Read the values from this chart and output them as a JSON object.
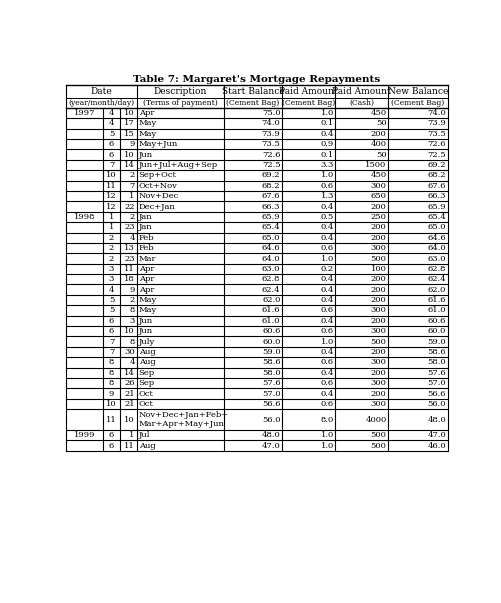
{
  "title": "Table 7: Margaret's Mortgage Repayments",
  "headers_line1": [
    "Date",
    "",
    "",
    "Description",
    "Start Balance",
    "Paid Amount",
    "Paid Amount",
    "New Balance"
  ],
  "headers_line2": [
    "(year/month/day)",
    "",
    "",
    "(Terms of payment)",
    "(Cement Bag)",
    "(Cement Bag)",
    "(Cash)",
    "(Cement Bag)"
  ],
  "rows": [
    [
      1997,
      4,
      10,
      "Apr",
      75.0,
      1.0,
      450,
      74.0
    ],
    [
      1997,
      4,
      17,
      "May",
      74.0,
      0.1,
      50,
      73.9
    ],
    [
      1997,
      5,
      15,
      "May",
      73.9,
      0.4,
      200,
      73.5
    ],
    [
      1997,
      6,
      9,
      "May+Jun",
      73.5,
      0.9,
      400,
      72.6
    ],
    [
      1997,
      6,
      10,
      "Jun",
      72.6,
      0.1,
      50,
      72.5
    ],
    [
      1997,
      7,
      14,
      "Jun+Jul+Aug+Sep",
      72.5,
      3.3,
      1500,
      69.2
    ],
    [
      1997,
      10,
      2,
      "Sep+Oct",
      69.2,
      1.0,
      450,
      68.2
    ],
    [
      1997,
      11,
      7,
      "Oct+Nov",
      68.2,
      0.6,
      300,
      67.6
    ],
    [
      1997,
      12,
      1,
      "Nov+Dec",
      67.6,
      1.3,
      650,
      66.3
    ],
    [
      1997,
      12,
      22,
      "Dec+Jan",
      66.3,
      0.4,
      200,
      65.9
    ],
    [
      1998,
      1,
      2,
      "Jan",
      65.9,
      0.5,
      250,
      65.4
    ],
    [
      1998,
      1,
      23,
      "Jan",
      65.4,
      0.4,
      200,
      65.0
    ],
    [
      1998,
      2,
      4,
      "Feb",
      65.0,
      0.4,
      200,
      64.6
    ],
    [
      1998,
      2,
      13,
      "Feb",
      64.6,
      0.6,
      300,
      64.0
    ],
    [
      1998,
      2,
      23,
      "Mar",
      64.0,
      1.0,
      500,
      63.0
    ],
    [
      1998,
      3,
      11,
      "Apr",
      63.0,
      0.2,
      100,
      62.8
    ],
    [
      1998,
      3,
      18,
      "Apr",
      62.8,
      0.4,
      200,
      62.4
    ],
    [
      1998,
      4,
      9,
      "Apr",
      62.4,
      0.4,
      200,
      62.0
    ],
    [
      1998,
      5,
      2,
      "May",
      62.0,
      0.4,
      200,
      61.6
    ],
    [
      1998,
      5,
      8,
      "May",
      61.6,
      0.6,
      300,
      61.0
    ],
    [
      1998,
      6,
      3,
      "Jun",
      61.0,
      0.4,
      200,
      60.6
    ],
    [
      1998,
      6,
      10,
      "Jun",
      60.6,
      0.6,
      300,
      60.0
    ],
    [
      1998,
      7,
      8,
      "July",
      60.0,
      1.0,
      500,
      59.0
    ],
    [
      1998,
      7,
      30,
      "Aug",
      59.0,
      0.4,
      200,
      58.6
    ],
    [
      1998,
      8,
      4,
      "Aug",
      58.6,
      0.6,
      300,
      58.0
    ],
    [
      1998,
      8,
      14,
      "Sep",
      58.0,
      0.4,
      200,
      57.6
    ],
    [
      1998,
      8,
      26,
      "Sep",
      57.6,
      0.6,
      300,
      57.0
    ],
    [
      1998,
      9,
      21,
      "Oct",
      57.0,
      0.4,
      200,
      56.6
    ],
    [
      1998,
      10,
      21,
      "Oct",
      56.6,
      0.6,
      300,
      56.0
    ],
    [
      1998,
      11,
      10,
      "Nov+Dec+Jan+Feb+\nMar+Apr+May+Jun",
      56.0,
      8.0,
      4000,
      48.0
    ],
    [
      1999,
      6,
      1,
      "Jul",
      48.0,
      1.0,
      500,
      47.0
    ],
    [
      1999,
      6,
      11,
      "Aug",
      47.0,
      1.0,
      500,
      46.0
    ]
  ],
  "bg_color": "#ffffff",
  "text_color": "#000000"
}
